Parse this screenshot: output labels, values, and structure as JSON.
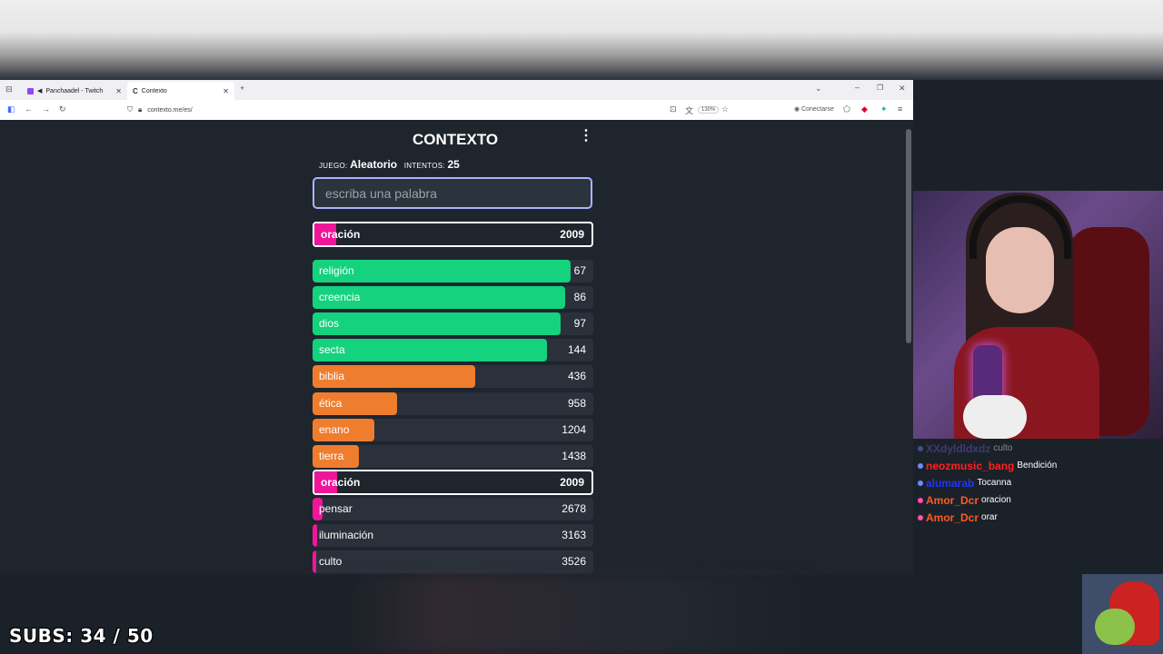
{
  "browser": {
    "tabs": [
      {
        "title": "Panchaadel - Twitch",
        "icon": "twitch-icon",
        "active": false
      },
      {
        "title": "Contexto",
        "icon": "contexto-icon",
        "active": true
      }
    ],
    "url": "contexto.me/es/",
    "zoom": "130%",
    "connect_label": "Conectarse"
  },
  "game": {
    "logo": "CONTEXTO",
    "juego_label": "JUEGO:",
    "juego_value": "Aleatorio",
    "intentos_label": "INTENTOS:",
    "intentos_value": "25",
    "input_placeholder": "escriba una palabra",
    "last_guess": {
      "word": "oración",
      "rank": "2009"
    },
    "guesses": [
      {
        "word": "religión",
        "rank": "67",
        "color": "#14d27e",
        "fill": 0.92
      },
      {
        "word": "creencia",
        "rank": "86",
        "color": "#14d27e",
        "fill": 0.9
      },
      {
        "word": "dios",
        "rank": "97",
        "color": "#14d27e",
        "fill": 0.885
      },
      {
        "word": "secta",
        "rank": "144",
        "color": "#14d27e",
        "fill": 0.835
      },
      {
        "word": "biblia",
        "rank": "436",
        "color": "#ef7d2e",
        "fill": 0.58
      },
      {
        "word": "ética",
        "rank": "958",
        "color": "#ef7d2e",
        "fill": 0.3
      },
      {
        "word": "enano",
        "rank": "1204",
        "color": "#ef7d2e",
        "fill": 0.22
      },
      {
        "word": "tierra",
        "rank": "1438",
        "color": "#ef7d2e",
        "fill": 0.165
      },
      {
        "word": "oración",
        "rank": "2009",
        "color": "#f0169a",
        "fill": 0.08,
        "highlight": true
      },
      {
        "word": "pensar",
        "rank": "2678",
        "color": "#f0169a",
        "fill": 0.035
      },
      {
        "word": "iluminación",
        "rank": "3163",
        "color": "#f0169a",
        "fill": 0.015
      },
      {
        "word": "culto",
        "rank": "3526",
        "color": "#f0169a",
        "fill": 0.012
      }
    ]
  },
  "chat": [
    {
      "user": "XXdyldldxdz",
      "message": "culto",
      "user_color": "#6a5acd"
    },
    {
      "user": "neozmusic_bang",
      "message": "Bendición",
      "user_color": "#ff2020"
    },
    {
      "user": "alumarab",
      "message": "Tocanna",
      "user_color": "#2233ff"
    },
    {
      "user": "Amor_Dcr",
      "message": "oracion",
      "user_color": "#ff5a1f"
    },
    {
      "user": "Amor_Dcr",
      "message": "orar",
      "user_color": "#ff5a1f"
    }
  ],
  "overlay": {
    "subs_text": "SUBS: 34 / 50"
  }
}
